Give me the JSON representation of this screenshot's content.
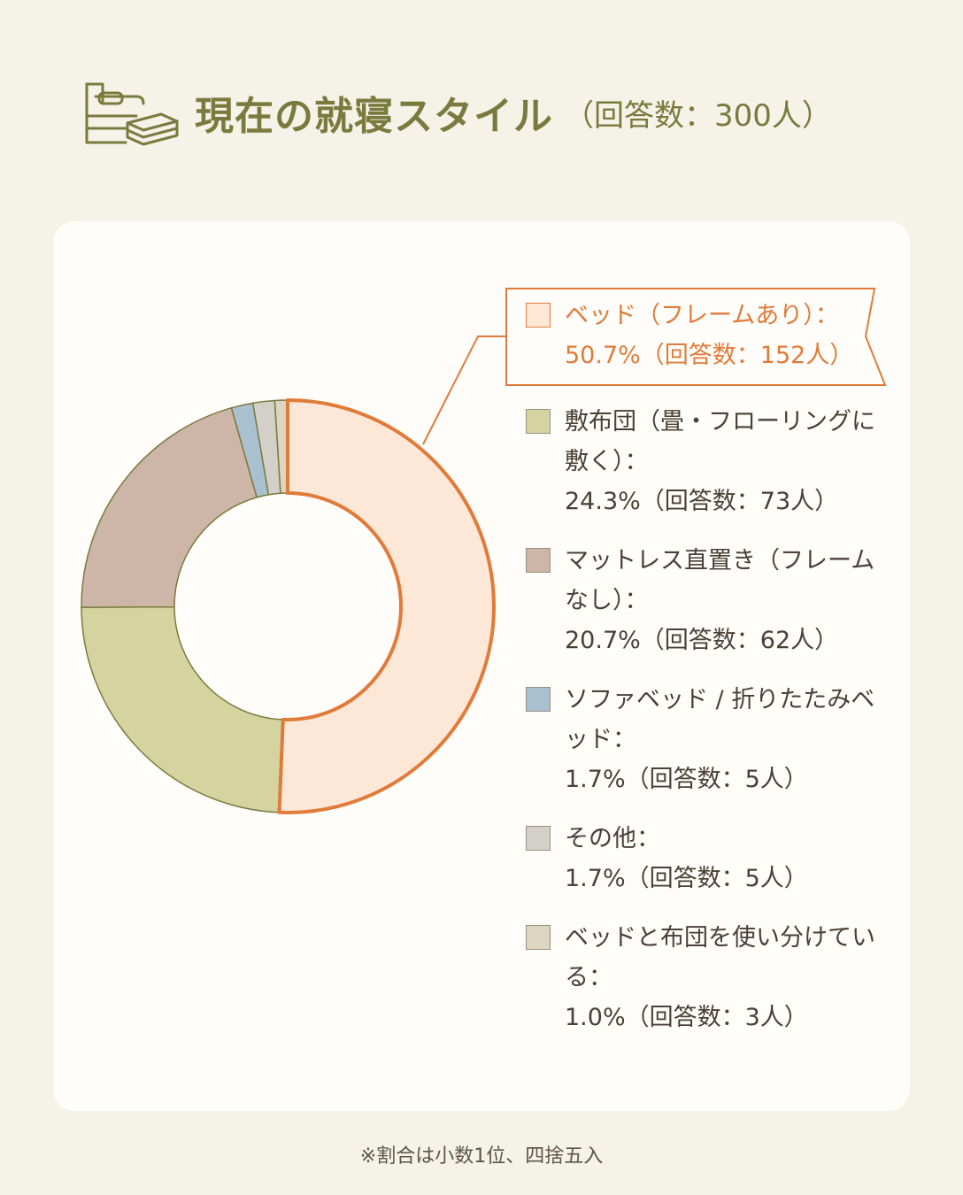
{
  "header": {
    "title": "現在の就寝スタイル",
    "subtitle": "（回答数：300人）",
    "icon": "bed-and-futon-icon"
  },
  "chart_data": {
    "type": "pie",
    "title": "現在の就寝スタイル",
    "subtitle": "（回答数：300人）",
    "total_respondents": 300,
    "unit": "%",
    "slices": [
      {
        "label": "ベッド（フレームあり）：",
        "value_text": "50.7%（回答数：152人）",
        "percent": 50.7,
        "count": 152,
        "color": "#fde8d8",
        "stroke": "#e07b39",
        "highlight": true
      },
      {
        "label": "敷布団（畳・フローリングに敷く）：",
        "value_text": "24.3%（回答数：73人）",
        "percent": 24.3,
        "count": 73,
        "color": "#d5d3a0",
        "stroke": "#7b7a3e",
        "highlight": false
      },
      {
        "label": "マットレス直置き（フレームなし）：",
        "value_text": "20.7%（回答数：62人）",
        "percent": 20.7,
        "count": 62,
        "color": "#cdb6a8",
        "stroke": "#7b7a3e",
        "highlight": false
      },
      {
        "label": "ソファベッド / 折りたたみベッド：",
        "value_text": "1.7%（回答数：5人）",
        "percent": 1.7,
        "count": 5,
        "color": "#a9c0cf",
        "stroke": "#7b7a3e",
        "highlight": false
      },
      {
        "label": "その他：",
        "value_text": "1.7%（回答数：5人）",
        "percent": 1.7,
        "count": 5,
        "color": "#d3d0c9",
        "stroke": "#7b7a3e",
        "highlight": false
      },
      {
        "label": "ベッドと布団を使い分けている：",
        "value_text": "1.0%（回答数：3人）",
        "percent": 1.0,
        "count": 3,
        "color": "#ddd4c2",
        "stroke": "#7b7a3e",
        "highlight": false
      }
    ],
    "legend_position": "right"
  },
  "footnote": "※割合は小数1位、四捨五入"
}
